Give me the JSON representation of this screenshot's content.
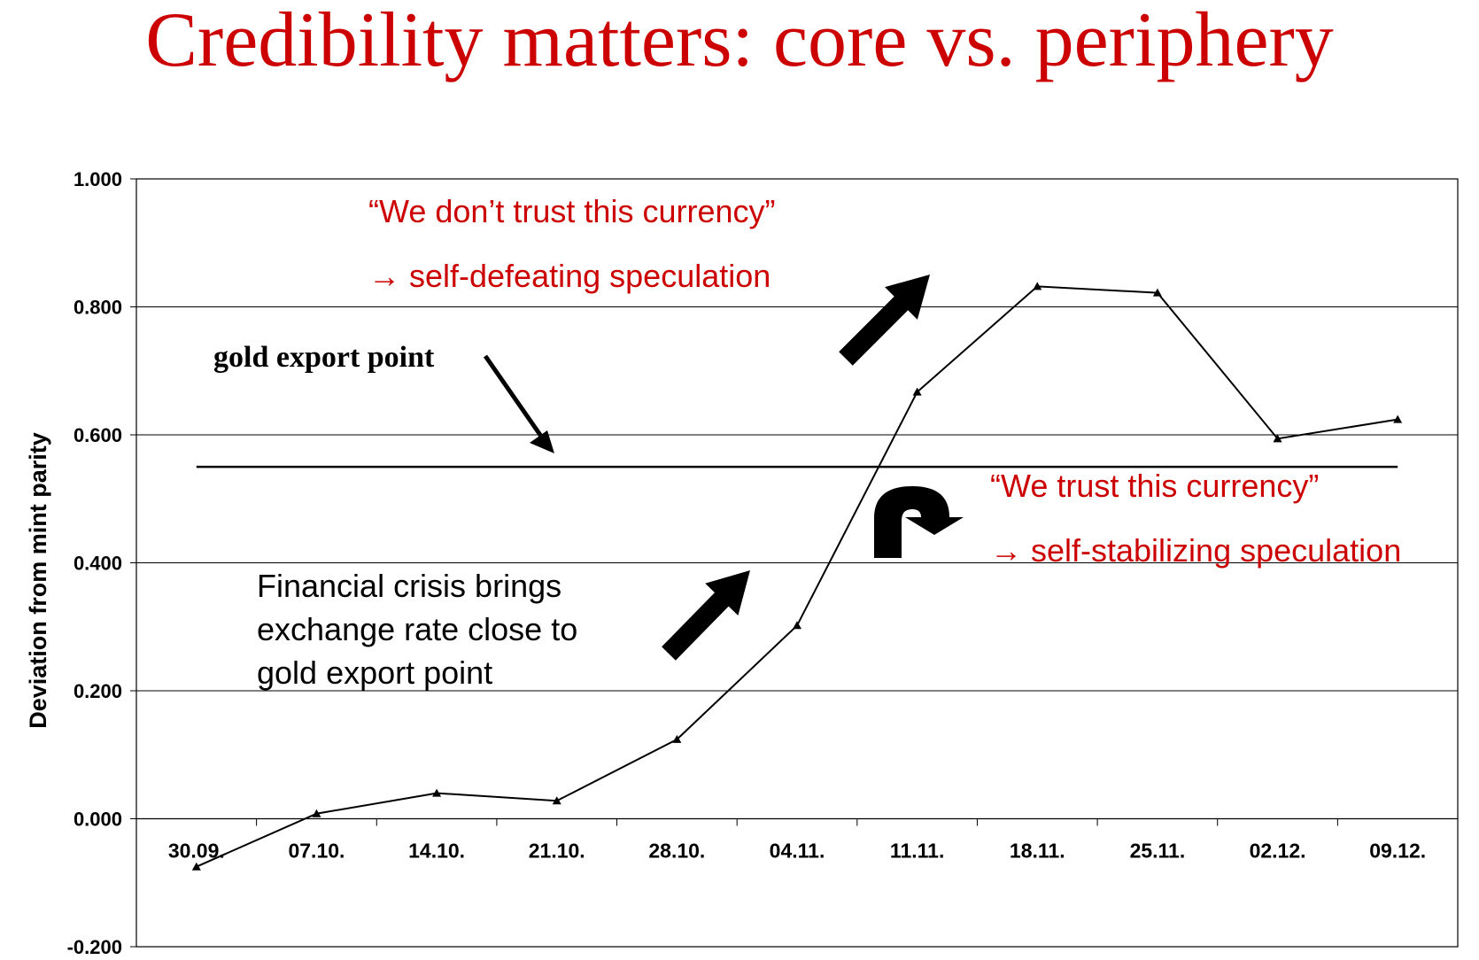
{
  "slide": {
    "title": "Credibility matters: core vs. periphery"
  },
  "chart_data": {
    "type": "line",
    "ylabel": "Deviation from mint parity",
    "xlabel": "",
    "ylim": [
      -0.2,
      1.0
    ],
    "y_ticks": [
      "1.000",
      "0.800",
      "0.600",
      "0.400",
      "0.200",
      "0.000",
      "-0.200"
    ],
    "y_tick_values": [
      1.0,
      0.8,
      0.6,
      0.4,
      0.2,
      0.0,
      -0.2
    ],
    "grid": true,
    "categories": [
      "30.09.",
      "07.10.",
      "14.10.",
      "21.10.",
      "28.10.",
      "04.11.",
      "11.11.",
      "18.11.",
      "25.11.",
      "02.12.",
      "09.12."
    ],
    "series": [
      {
        "values": [
          -0.075,
          0.008,
          0.04,
          0.028,
          0.124,
          0.302,
          0.667,
          0.832,
          0.822,
          0.594,
          0.624
        ],
        "color": "#000000",
        "marker": "triangle"
      }
    ],
    "reference_line": {
      "value": 0.55,
      "color": "#000000"
    },
    "annotations": {
      "gold_export_point": "gold export point",
      "distrust_line1": "“We don’t trust this currency”",
      "distrust_line2": "→ self-defeating speculation",
      "trust_line1": "“We trust this currency”",
      "trust_line2": "→ self-stabilizing speculation",
      "crisis_line1": "Financial crisis brings",
      "crisis_line2": "exchange rate close to",
      "crisis_line3": "gold export point"
    }
  },
  "colors": {
    "title": "#cc0000",
    "annotation_red": "#cc0000",
    "axis": "#000000"
  }
}
